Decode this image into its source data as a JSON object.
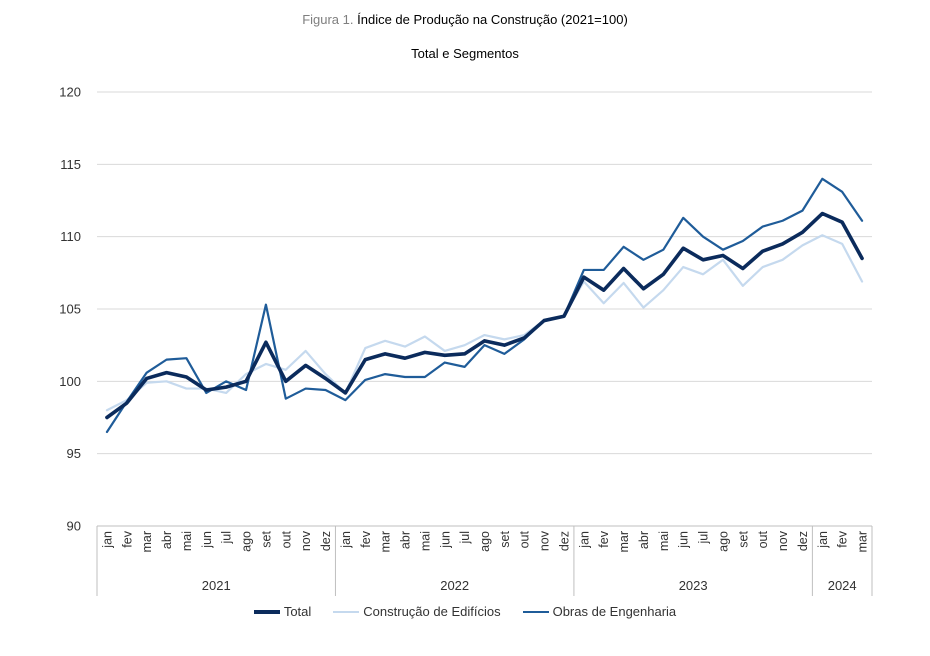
{
  "chart_data": {
    "type": "line",
    "title_prefix": "Figura 1.",
    "title": "Índice de Produção na Construção (2021=100)",
    "subtitle": "Total e Segmentos",
    "xlabel": "",
    "ylabel": "",
    "ylim": [
      90,
      120
    ],
    "yticks": [
      "90",
      "95",
      "100",
      "105",
      "110",
      "115",
      "120"
    ],
    "grid": true,
    "legend_position": "bottom",
    "months": [
      "jan",
      "fev",
      "mar",
      "abr",
      "mai",
      "jun",
      "jul",
      "ago",
      "set",
      "out",
      "nov",
      "dez",
      "jan",
      "fev",
      "mar",
      "abr",
      "mai",
      "jun",
      "jul",
      "ago",
      "set",
      "out",
      "nov",
      "dez",
      "jan",
      "fev",
      "mar",
      "abr",
      "mai",
      "jun",
      "jul",
      "ago",
      "set",
      "out",
      "nov",
      "dez",
      "jan",
      "fev",
      "mar"
    ],
    "years": [
      {
        "label": "2021",
        "count": 12
      },
      {
        "label": "2022",
        "count": 12
      },
      {
        "label": "2023",
        "count": 12
      },
      {
        "label": "2024",
        "count": 3
      }
    ],
    "series": [
      {
        "name": "Construção de Edifícios",
        "color": "#c5d9ee",
        "values": [
          98.0,
          98.7,
          99.9,
          100.0,
          99.5,
          99.5,
          99.2,
          100.5,
          101.2,
          100.8,
          102.1,
          100.5,
          99.2,
          102.3,
          102.8,
          102.4,
          103.1,
          102.1,
          102.5,
          103.2,
          102.9,
          103.2,
          104.2,
          104.5,
          106.9,
          105.4,
          106.8,
          105.1,
          106.3,
          107.9,
          107.4,
          108.4,
          106.6,
          107.9,
          108.4,
          109.4,
          110.1,
          109.5,
          106.9
        ]
      },
      {
        "name": "Obras de Engenharia",
        "color": "#1f5c99",
        "values": [
          96.5,
          98.6,
          100.6,
          101.5,
          101.6,
          99.2,
          100.0,
          99.4,
          105.3,
          98.8,
          99.5,
          99.4,
          98.7,
          100.1,
          100.5,
          100.3,
          100.3,
          101.3,
          101.0,
          102.5,
          101.9,
          102.9,
          104.2,
          104.5,
          107.7,
          107.7,
          109.3,
          108.4,
          109.1,
          111.3,
          110.0,
          109.1,
          109.7,
          110.7,
          111.1,
          111.8,
          114.0,
          113.1,
          111.1
        ]
      },
      {
        "name": "Total",
        "color": "#0b2b5c",
        "values": [
          97.5,
          98.5,
          100.2,
          100.6,
          100.3,
          99.4,
          99.6,
          100.0,
          102.7,
          100.0,
          101.1,
          100.2,
          99.2,
          101.5,
          101.9,
          101.6,
          102.0,
          101.8,
          101.9,
          102.8,
          102.5,
          103.0,
          104.2,
          104.5,
          107.2,
          106.3,
          107.8,
          106.4,
          107.4,
          109.2,
          108.4,
          108.7,
          107.8,
          109.0,
          109.5,
          110.3,
          111.6,
          111.0,
          108.5
        ]
      }
    ],
    "legend": [
      {
        "label": "Total",
        "color": "#0b2b5c",
        "width": 4
      },
      {
        "label": "Construção de Edifícios",
        "color": "#c5d9ee",
        "width": 2.5
      },
      {
        "label": "Obras de Engenharia",
        "color": "#1f5c99",
        "width": 2.5
      }
    ]
  }
}
